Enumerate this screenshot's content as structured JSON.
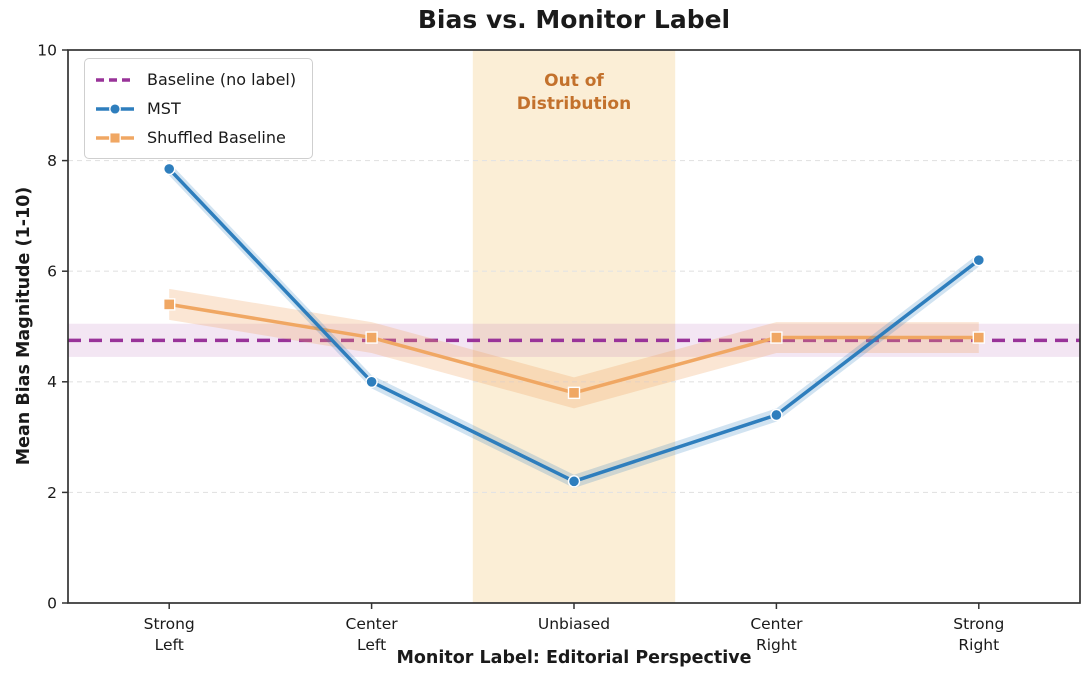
{
  "chart_data": {
    "type": "line",
    "title": "Bias vs. Monitor Label",
    "xlabel": "Monitor Label: Editorial Perspective",
    "ylabel": "Mean Bias Magnitude (1-10)",
    "ylim": [
      0,
      10
    ],
    "yticks": [
      0,
      2,
      4,
      6,
      8,
      10
    ],
    "categories": [
      "Strong Left",
      "Center Left",
      "Unbiased",
      "Center Right",
      "Strong Right"
    ],
    "category_label_lines": [
      [
        "Strong",
        "Left"
      ],
      [
        "Center",
        "Left"
      ],
      [
        "Unbiased"
      ],
      [
        "Center",
        "Right"
      ],
      [
        "Strong",
        "Right"
      ]
    ],
    "grid": "horizontal dashed gridlines on",
    "legend_position": "upper left",
    "baseline": {
      "label": "Baseline (no label)",
      "value": 4.75,
      "band": [
        4.45,
        5.05
      ],
      "color": "#993399",
      "style": "dashed"
    },
    "series": [
      {
        "name": "MST",
        "marker": "circle",
        "color": "#2e7ebd",
        "ci_halfwidth": 0.12,
        "values": [
          7.85,
          4.0,
          2.2,
          3.4,
          6.2
        ]
      },
      {
        "name": "Shuffled Baseline",
        "marker": "square",
        "color": "#f0a763",
        "ci_halfwidth": 0.28,
        "values": [
          5.4,
          4.8,
          3.8,
          4.8,
          4.8
        ]
      }
    ],
    "annotation": {
      "line1": "Out of",
      "line2": "Distribution",
      "category": "Unbiased",
      "band_color": "#fbeed6",
      "text_color": "#c3712c"
    }
  }
}
